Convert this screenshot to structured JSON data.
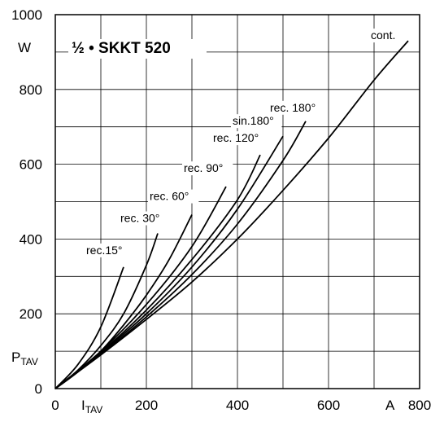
{
  "chart_data": {
    "type": "line",
    "title": "½ • SKKT 520",
    "xunit": "A",
    "yunit": "W",
    "xlabel_main": "I",
    "xlabel_sub": "TAV",
    "ylabel_main": "P",
    "ylabel_sub": "TAV",
    "xlim": [
      0,
      800
    ],
    "ylim": [
      0,
      1000
    ],
    "xticks": [
      0,
      200,
      400,
      600,
      800
    ],
    "yticks": [
      0,
      200,
      400,
      600,
      800,
      1000
    ],
    "grid": true,
    "series": [
      {
        "name": "rec.15°",
        "x": [
          0,
          50,
          100,
          150
        ],
        "y": [
          0,
          65,
          165,
          325
        ]
      },
      {
        "name": "rec. 30°",
        "x": [
          0,
          50,
          100,
          150,
          200,
          225
        ],
        "y": [
          0,
          50,
          115,
          200,
          330,
          415
        ]
      },
      {
        "name": "rec. 60°",
        "x": [
          0,
          50,
          100,
          150,
          200,
          250,
          300
        ],
        "y": [
          0,
          45,
          100,
          170,
          250,
          345,
          465
        ]
      },
      {
        "name": "rec. 90°",
        "x": [
          0,
          100,
          200,
          300,
          375
        ],
        "y": [
          0,
          100,
          225,
          380,
          540
        ]
      },
      {
        "name": "rec. 120°",
        "x": [
          0,
          100,
          200,
          300,
          400,
          450
        ],
        "y": [
          0,
          97,
          210,
          345,
          505,
          625
        ]
      },
      {
        "name": "sin.180°",
        "x": [
          0,
          100,
          200,
          300,
          400,
          500
        ],
        "y": [
          0,
          95,
          200,
          325,
          480,
          675
        ]
      },
      {
        "name": "rec. 180°",
        "x": [
          0,
          100,
          200,
          300,
          400,
          500,
          550
        ],
        "y": [
          0,
          92,
          192,
          305,
          440,
          610,
          715
        ]
      },
      {
        "name": "cont.",
        "x": [
          0,
          100,
          200,
          300,
          400,
          500,
          600,
          700,
          775
        ],
        "y": [
          0,
          90,
          185,
          285,
          400,
          530,
          670,
          825,
          930
        ]
      }
    ]
  }
}
